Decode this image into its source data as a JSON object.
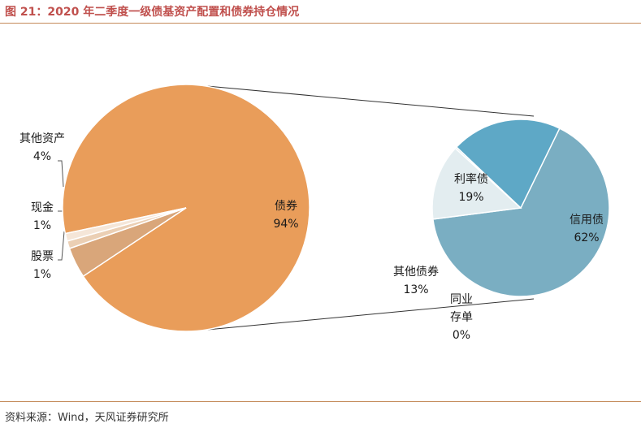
{
  "title": "图 21：2020 年二季度一级债基资产配置和债券持仓情况",
  "source": "资料来源：Wind，天风证券研究所",
  "chart_data": [
    {
      "type": "pie",
      "slices": [
        {
          "label": "债券",
          "pct_label": "94%",
          "value": 94,
          "color": "#e99d5a"
        },
        {
          "label": "其他资产",
          "pct_label": "4%",
          "value": 4,
          "color": "#d9a67a"
        },
        {
          "label": "现金",
          "pct_label": "1%",
          "value": 1,
          "color": "#ebcfb4"
        },
        {
          "label": "股票",
          "pct_label": "1%",
          "value": 1,
          "color": "#f5e6d8"
        }
      ]
    },
    {
      "type": "pie",
      "slices": [
        {
          "label": "信用债",
          "pct_label": "62%",
          "value": 62,
          "color": "#7aaec2"
        },
        {
          "label": "其他债券",
          "pct_label": "13%",
          "value": 13,
          "color": "#e3edf0"
        },
        {
          "label": "同业\n存单",
          "pct_label": "0%",
          "value": 0.3,
          "color": "#cfe2ea"
        },
        {
          "label": "利率债",
          "pct_label": "19%",
          "value": 19,
          "color": "#5ea8c6"
        }
      ]
    }
  ]
}
